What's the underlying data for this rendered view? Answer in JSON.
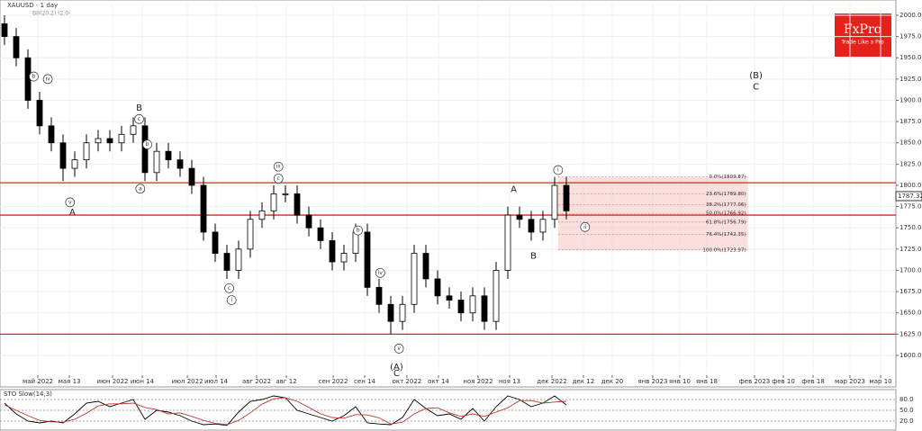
{
  "chart_data": {
    "type": "candlestick",
    "title": "XAUUSD - 1 day",
    "subtitle": "BB(20,2) (2.0)",
    "xlim": [
      -0.385,
      76.155
    ],
    "ylim": [
      1578.8,
      2012.7
    ],
    "xticks": [
      {
        "value": 2.85,
        "label": "май 2022"
      },
      {
        "value": 5.54,
        "label": "мая 13"
      },
      {
        "value": 9.23,
        "label": "июн 2022"
      },
      {
        "value": 11.77,
        "label": "июн 14"
      },
      {
        "value": 15.62,
        "label": "июл 2022"
      },
      {
        "value": 18.08,
        "label": "июл 14"
      },
      {
        "value": 21.54,
        "label": "авг 2022"
      },
      {
        "value": 24.08,
        "label": "авг 12"
      },
      {
        "value": 28.08,
        "label": "сен 2022"
      },
      {
        "value": 30.77,
        "label": "сен 14"
      },
      {
        "value": 34.38,
        "label": "окт 2022"
      },
      {
        "value": 37.08,
        "label": "окт 14"
      },
      {
        "value": 40.46,
        "label": "ноя 2022"
      },
      {
        "value": 43.15,
        "label": "ноя 13"
      },
      {
        "value": 46.77,
        "label": "дек 2022"
      },
      {
        "value": 49.46,
        "label": "дек 12"
      },
      {
        "value": 51.92,
        "label": "дек 20"
      },
      {
        "value": 55.38,
        "label": "янв 2023"
      },
      {
        "value": 57.69,
        "label": "янв 10"
      },
      {
        "value": 60,
        "label": "янв 18"
      },
      {
        "value": 64.08,
        "label": "фев 2023"
      },
      {
        "value": 66.54,
        "label": "фев 10"
      },
      {
        "value": 69.08,
        "label": "фев 18"
      },
      {
        "value": 72.23,
        "label": "мар 2023"
      },
      {
        "value": 74.85,
        "label": "мар 10"
      }
    ],
    "yticks": [
      {
        "value": 1600,
        "label": "1600.00"
      },
      {
        "value": 1625,
        "label": "1625.00"
      },
      {
        "value": 1650,
        "label": "1650.00"
      },
      {
        "value": 1675,
        "label": "1675.00"
      },
      {
        "value": 1700,
        "label": "1700.00"
      },
      {
        "value": 1725,
        "label": "1725.00"
      },
      {
        "value": 1750,
        "label": "1750.00"
      },
      {
        "value": 1775,
        "label": "1775.00"
      },
      {
        "value": 1800,
        "label": "1800.00"
      },
      {
        "value": 1825,
        "label": "1825.00"
      },
      {
        "value": 1850,
        "label": "1850.00"
      },
      {
        "value": 1875,
        "label": "1875.00"
      },
      {
        "value": 1900,
        "label": "1900.00"
      },
      {
        "value": 1925,
        "label": "1925.00"
      },
      {
        "value": 1950,
        "label": "1950.00"
      },
      {
        "value": 1975,
        "label": "1975.00"
      },
      {
        "value": 2000,
        "label": "2000.00"
      }
    ],
    "grid": true,
    "up_color": "#ffffff",
    "down_color": "#000000",
    "level_color": "#e8201a",
    "open": [
      1990,
      1975,
      1950,
      1900,
      1870,
      1850,
      1820,
      1830,
      1850,
      1855,
      1850,
      1860,
      1870,
      1815,
      1840,
      1830,
      1820,
      1800,
      1745,
      1720,
      1700,
      1725,
      1760,
      1770,
      1790,
      1790,
      1765,
      1750,
      1735,
      1710,
      1720,
      1745,
      1680,
      1660,
      1640,
      1660,
      1720,
      1690,
      1670,
      1665,
      1650,
      1670,
      1640,
      1700,
      1765,
      1760,
      1745,
      1760,
      1800
    ],
    "high": [
      2000,
      1985,
      1960,
      1910,
      1880,
      1860,
      1840,
      1860,
      1865,
      1865,
      1870,
      1880,
      1880,
      1850,
      1850,
      1840,
      1830,
      1810,
      1755,
      1730,
      1735,
      1770,
      1780,
      1800,
      1800,
      1800,
      1775,
      1760,
      1745,
      1730,
      1755,
      1755,
      1690,
      1670,
      1670,
      1730,
      1730,
      1700,
      1680,
      1675,
      1680,
      1680,
      1710,
      1775,
      1775,
      1770,
      1770,
      1810,
      1810
    ],
    "low": [
      1965,
      1940,
      1890,
      1860,
      1840,
      1805,
      1810,
      1820,
      1840,
      1840,
      1840,
      1850,
      1805,
      1805,
      1820,
      1810,
      1790,
      1735,
      1710,
      1690,
      1690,
      1715,
      1750,
      1760,
      1780,
      1755,
      1740,
      1725,
      1700,
      1700,
      1710,
      1670,
      1650,
      1625,
      1630,
      1650,
      1680,
      1660,
      1655,
      1640,
      1640,
      1630,
      1630,
      1690,
      1750,
      1735,
      1735,
      1750,
      1760
    ],
    "close": [
      1975,
      1950,
      1900,
      1870,
      1850,
      1820,
      1830,
      1850,
      1855,
      1850,
      1860,
      1870,
      1815,
      1840,
      1830,
      1820,
      1800,
      1745,
      1720,
      1700,
      1725,
      1760,
      1770,
      1790,
      1790,
      1765,
      1750,
      1735,
      1710,
      1720,
      1745,
      1680,
      1660,
      1640,
      1660,
      1720,
      1690,
      1670,
      1665,
      1650,
      1670,
      1640,
      1700,
      1765,
      1760,
      1745,
      1760,
      1800,
      1770
    ],
    "levels": [
      1803,
      1765,
      1625
    ],
    "fib_x": [
      47.3,
      63.5
    ],
    "fib_levels": [
      {
        "price": 1809.87,
        "label": "0.0%(1809.87)"
      },
      {
        "price": 1789.8,
        "label": "23.6%(1789.80)"
      },
      {
        "price": 1777.06,
        "label": "38.2%(1777.06)"
      },
      {
        "price": 1766.92,
        "label": "50.0%(1766.92)"
      },
      {
        "price": 1756.79,
        "label": "61.8%(1756.79)"
      },
      {
        "price": 1742.35,
        "label": "76.4%(1742.35)"
      },
      {
        "price": 1723.97,
        "label": "100.0%(1723.97)"
      }
    ],
    "last_price": {
      "value": 1787.32,
      "label": "1787.32"
    },
    "annotations": [
      {
        "text": "A",
        "x": 5.8,
        "y": 1768
      },
      {
        "text": "B",
        "x": 11.5,
        "y": 1891
      },
      {
        "text": "C",
        "x": 33.5,
        "y": 1579
      },
      {
        "text": "(A)",
        "x": 33.5,
        "y": 1586
      },
      {
        "text": "A",
        "x": 43.5,
        "y": 1795
      },
      {
        "text": "B",
        "x": 45.2,
        "y": 1717
      },
      {
        "text": "(B)",
        "x": 64.2,
        "y": 1929
      },
      {
        "text": "C",
        "x": 64.2,
        "y": 1916
      }
    ],
    "circled": [
      {
        "text": "b",
        "x": 2.5,
        "y": 1928
      },
      {
        "text": "iv",
        "x": 3.7,
        "y": 1925
      },
      {
        "text": "v",
        "x": 5.6,
        "y": 1780
      },
      {
        "text": "c",
        "x": 11.5,
        "y": 1878
      },
      {
        "text": "b",
        "x": 12.2,
        "y": 1848
      },
      {
        "text": "a",
        "x": 11.6,
        "y": 1796
      },
      {
        "text": "iii",
        "x": 23.4,
        "y": 1822
      },
      {
        "text": "c",
        "x": 23.4,
        "y": 1808
      },
      {
        "text": "c",
        "x": 19.2,
        "y": 1679
      },
      {
        "text": "i",
        "x": 19.4,
        "y": 1665
      },
      {
        "text": "iv",
        "x": 32.1,
        "y": 1697
      },
      {
        "text": "b",
        "x": 30.2,
        "y": 1747
      },
      {
        "text": "v",
        "x": 33.7,
        "y": 1608
      },
      {
        "text": "i",
        "x": 47.3,
        "y": 1818
      },
      {
        "text": "ii",
        "x": 49.6,
        "y": 1751
      }
    ],
    "stochastic": {
      "title": "STO Slow(14,3)",
      "ylim": [
        0,
        100
      ],
      "yticks": [
        {
          "value": 80,
          "label": "80.0"
        },
        {
          "value": 50,
          "label": "50.0"
        },
        {
          "value": 20,
          "label": "20.0"
        }
      ],
      "series": [
        {
          "name": "%K",
          "color": "#000000",
          "values": [
            70,
            40,
            20,
            15,
            20,
            15,
            40,
            70,
            75,
            60,
            70,
            80,
            25,
            50,
            45,
            35,
            20,
            10,
            12,
            8,
            45,
            75,
            80,
            90,
            85,
            50,
            40,
            30,
            20,
            35,
            60,
            15,
            12,
            10,
            30,
            80,
            55,
            35,
            40,
            25,
            55,
            20,
            60,
            90,
            80,
            60,
            70,
            90,
            65
          ]
        },
        {
          "name": "%D",
          "color": "#c0392b",
          "values": [
            65,
            50,
            35,
            22,
            18,
            17,
            25,
            42,
            62,
            68,
            68,
            70,
            58,
            52,
            40,
            43,
            33,
            22,
            14,
            10,
            22,
            43,
            67,
            82,
            85,
            75,
            58,
            40,
            30,
            28,
            38,
            37,
            29,
            12,
            17,
            40,
            55,
            57,
            43,
            33,
            40,
            33,
            45,
            57,
            77,
            77,
            70,
            73,
            75
          ]
        }
      ]
    },
    "logo": {
      "name": "FxPro",
      "tagline": "Trade Like a Pro"
    }
  }
}
